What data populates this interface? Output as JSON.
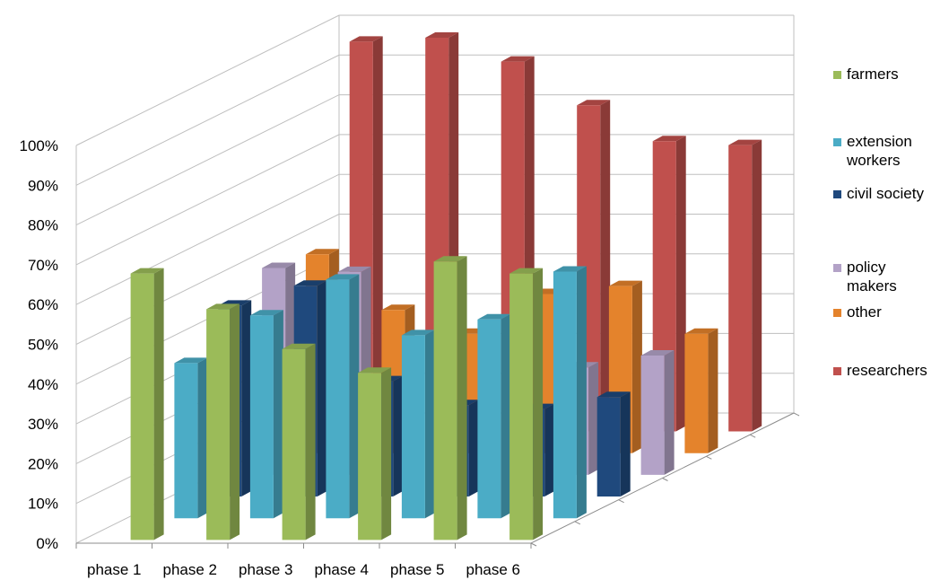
{
  "chart_data": {
    "type": "bar",
    "subtype": "3d-column",
    "title": "",
    "xlabel": "",
    "ylabel": "",
    "categories": [
      "phase 1",
      "phase 2",
      "phase 3",
      "phase 4",
      "phase 5",
      "phase 6"
    ],
    "ylim": [
      0,
      100
    ],
    "ytick_labels": [
      "0%",
      "10%",
      "20%",
      "30%",
      "40%",
      "50%",
      "60%",
      "70%",
      "80%",
      "90%",
      "100%"
    ],
    "grid": true,
    "legend_position": "right",
    "series": [
      {
        "name": "farmers",
        "color": "#9bbb59",
        "values": [
          67,
          58,
          48,
          42,
          70,
          67
        ]
      },
      {
        "name": "extension workers",
        "color": "#4bacc6",
        "values": [
          39,
          51,
          60,
          46,
          50,
          62
        ]
      },
      {
        "name": "civil society",
        "color": "#1f497d",
        "values": [
          48,
          53,
          29,
          23,
          22,
          25
        ]
      },
      {
        "name": "policy makers",
        "color": "#b3a2c7",
        "values": [
          52,
          51,
          0,
          0,
          27,
          30
        ]
      },
      {
        "name": "other",
        "color": "#e4832c",
        "values": [
          50,
          36,
          30,
          40,
          42,
          30
        ]
      },
      {
        "name": "researchers",
        "color": "#c0504d",
        "values": [
          98,
          99,
          93,
          82,
          73,
          72
        ]
      }
    ]
  }
}
